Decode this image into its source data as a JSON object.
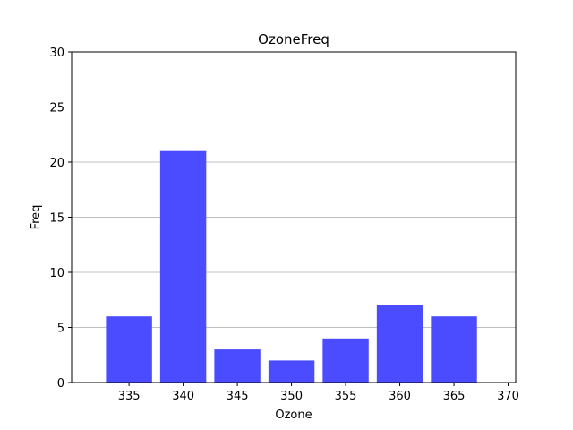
{
  "chart_data": {
    "type": "bar",
    "title": "OzoneFreq",
    "xlabel": "Ozone",
    "ylabel": "Freq",
    "bins": [
      {
        "start": 332.5,
        "end": 337.5,
        "value": 6
      },
      {
        "start": 337.5,
        "end": 342.5,
        "value": 21
      },
      {
        "start": 342.5,
        "end": 347.5,
        "value": 3
      },
      {
        "start": 347.5,
        "end": 352.5,
        "value": 2
      },
      {
        "start": 352.5,
        "end": 357.5,
        "value": 4
      },
      {
        "start": 357.5,
        "end": 362.5,
        "value": 7
      },
      {
        "start": 362.5,
        "end": 367.5,
        "value": 6
      }
    ],
    "xlim": [
      329.7,
      370.7
    ],
    "ylim": [
      0,
      30
    ],
    "xticks": [
      335,
      340,
      345,
      350,
      355,
      360,
      365,
      370
    ],
    "yticks": [
      0,
      5,
      10,
      15,
      20,
      25,
      30
    ],
    "grid": {
      "y": true,
      "x": false
    },
    "bar_color": "#4b4bff",
    "grid_color": "#c0c0c0"
  }
}
